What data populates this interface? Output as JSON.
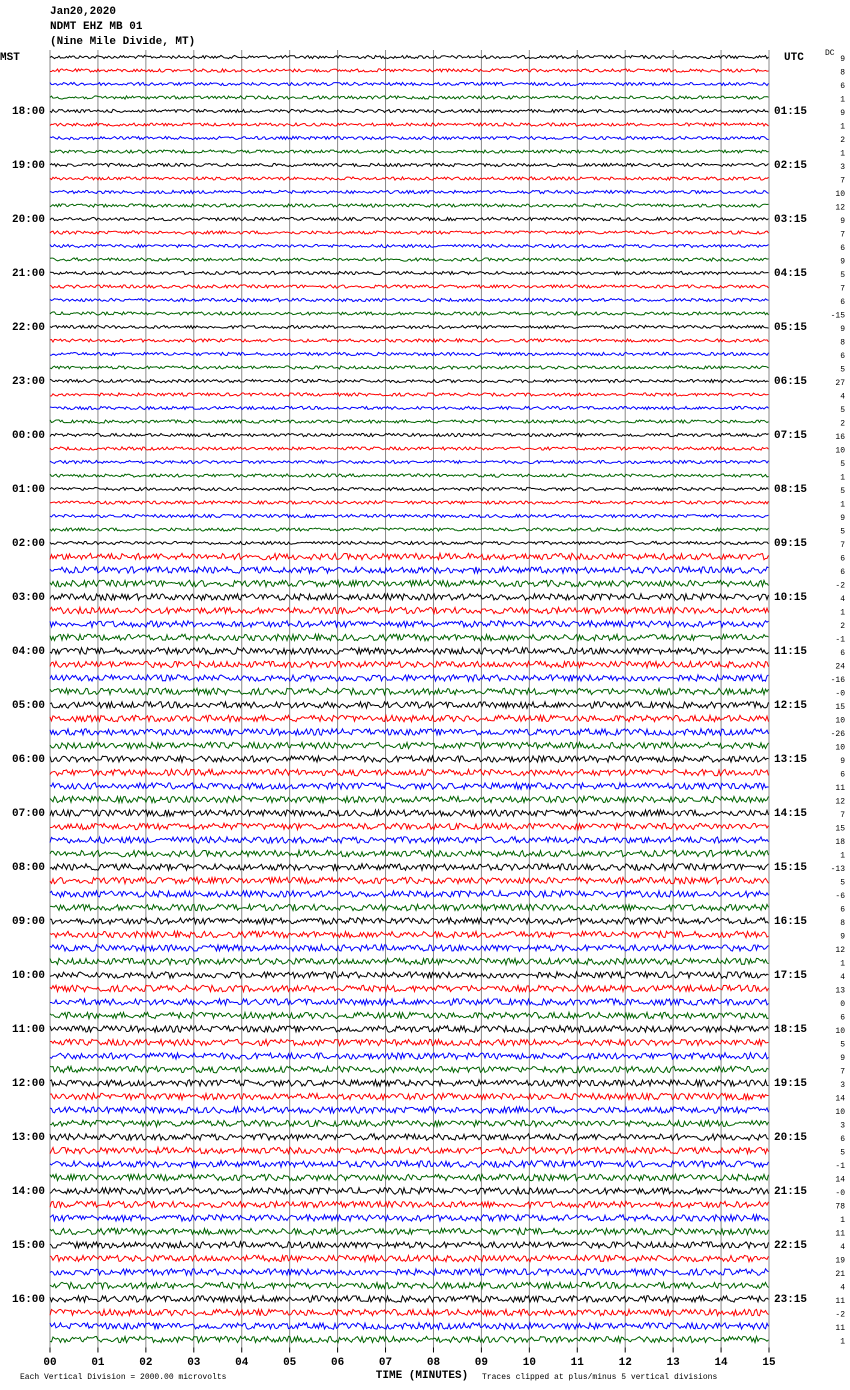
{
  "chart_data": {
    "type": "helicorder",
    "date": "Jan20,2020",
    "station": "NDMT EHZ MB 01",
    "location": "(Nine Mile Divide, MT)",
    "left_axis_label": "MST",
    "right_axis_label": "UTC",
    "dc_label": "DC",
    "left_labels": [
      "18:00",
      "19:00",
      "20:00",
      "21:00",
      "22:00",
      "23:00",
      "00:00",
      "01:00",
      "02:00",
      "03:00",
      "04:00",
      "05:00",
      "06:00",
      "07:00",
      "08:00",
      "09:00",
      "10:00",
      "11:00",
      "12:00",
      "13:00",
      "14:00",
      "15:00",
      "16:00"
    ],
    "right_labels": [
      "01:15",
      "02:15",
      "03:15",
      "04:15",
      "05:15",
      "06:15",
      "07:15",
      "08:15",
      "09:15",
      "10:15",
      "11:15",
      "12:15",
      "13:15",
      "14:15",
      "15:15",
      "16:15",
      "17:15",
      "18:15",
      "19:15",
      "20:15",
      "21:15",
      "22:15",
      "23:15"
    ],
    "dc_values": [
      9,
      8,
      6,
      1,
      9,
      1,
      2,
      1,
      3,
      7,
      10,
      12,
      9,
      7,
      6,
      9,
      5,
      7,
      6,
      -15,
      9,
      8,
      6,
      5,
      27,
      4,
      5,
      2,
      16,
      10,
      5,
      1,
      5,
      1,
      9,
      5,
      7,
      6,
      6,
      -2,
      4,
      1,
      2,
      -1,
      6,
      24,
      -16,
      {
        "value": 0,
        "label": "-0"
      },
      15,
      10,
      -26,
      10,
      9,
      6,
      11,
      12,
      7,
      15,
      18,
      1,
      -13,
      5,
      -6,
      6,
      8,
      9,
      12,
      1,
      4,
      13,
      0,
      6,
      10,
      5,
      9,
      7,
      3,
      14,
      10,
      3,
      6,
      5,
      -1,
      14,
      {
        "value": 0,
        "label": "-0"
      },
      78,
      1,
      11,
      4,
      19,
      21,
      4,
      11,
      -2,
      11,
      1
    ],
    "colors": [
      "#000000",
      "#ff0000",
      "#0000ff",
      "#006400"
    ],
    "xlim": [
      0,
      15
    ],
    "xticks": [
      {
        "value": 0,
        "label": "00"
      },
      {
        "value": 1,
        "label": "01"
      },
      {
        "value": 2,
        "label": "02"
      },
      {
        "value": 3,
        "label": "03"
      },
      {
        "value": 4,
        "label": "04"
      },
      {
        "value": 5,
        "label": "05"
      },
      {
        "value": 6,
        "label": "06"
      },
      {
        "value": 7,
        "label": "07"
      },
      {
        "value": 8,
        "label": "08"
      },
      {
        "value": 9,
        "label": "09"
      },
      {
        "value": 10,
        "label": "10"
      },
      {
        "value": 11,
        "label": "11"
      },
      {
        "value": 12,
        "label": "12"
      },
      {
        "value": 13,
        "label": "13"
      },
      {
        "value": 14,
        "label": "14"
      },
      {
        "value": 15,
        "label": "15"
      }
    ],
    "xlabel": "TIME (MINUTES)",
    "footnote_left": "Each Vertical Division = 2000.00 microvolts",
    "footnote_right": "Traces clipped at plus/minus 5 vertical divisions"
  }
}
